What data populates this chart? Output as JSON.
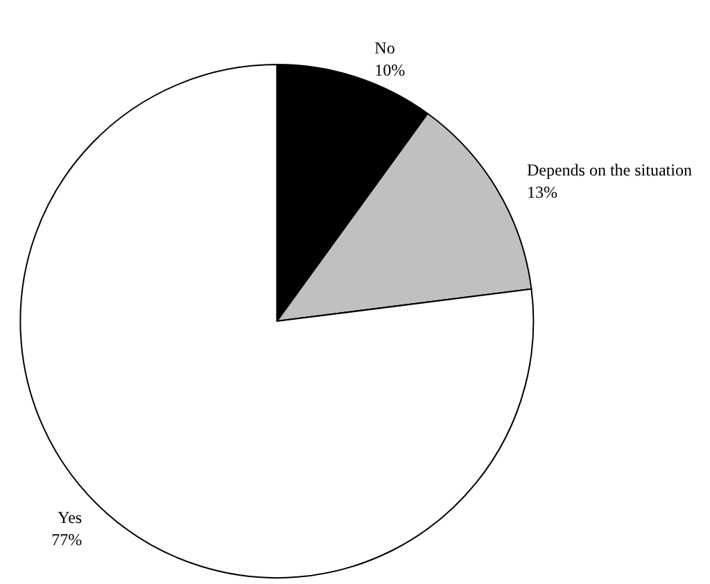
{
  "chart_data": {
    "type": "pie",
    "categories": [
      "No",
      "Depends on the situation",
      "Yes"
    ],
    "values": [
      10,
      13,
      77
    ],
    "colors": [
      "#000000",
      "#c0c0c0",
      "#ffffff"
    ],
    "value_labels": [
      "10%",
      "13%",
      "77%"
    ]
  }
}
